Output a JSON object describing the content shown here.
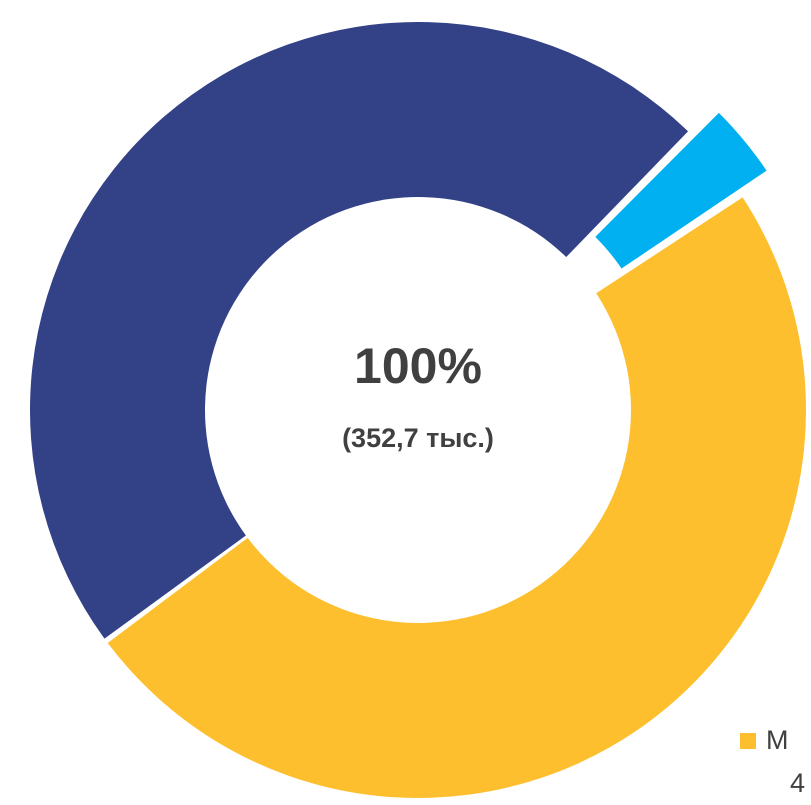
{
  "chart_data": {
    "type": "donut",
    "center_label": "100%",
    "center_sublabel": "(352,7 тыс.)",
    "categories": [
      null,
      null,
      "М"
    ],
    "values": [
      47.5,
      3.3,
      49.2
    ],
    "colors": [
      "#334187",
      "#00b0f0",
      "#fdbf2d"
    ],
    "exploded": [
      false,
      true,
      false
    ],
    "legend_value_fragment": "4"
  }
}
